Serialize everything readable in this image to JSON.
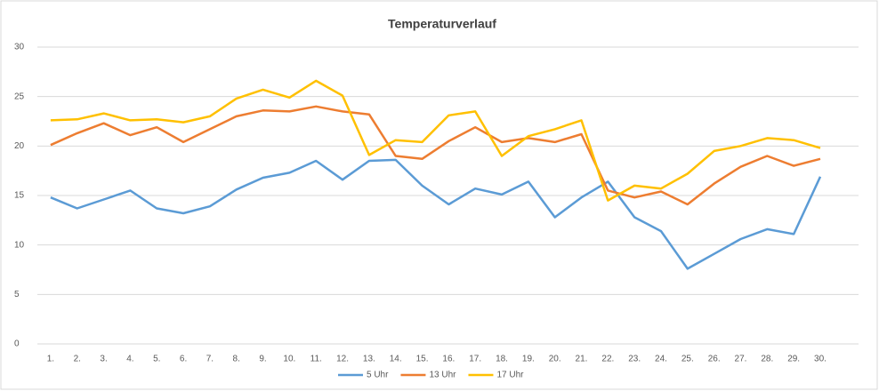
{
  "chart_data": {
    "type": "line",
    "title": "Temperaturverlauf",
    "categories": [
      "1.",
      "2.",
      "3.",
      "4.",
      "5.",
      "6.",
      "7.",
      "8.",
      "9.",
      "10.",
      "11.",
      "12.",
      "13.",
      "14.",
      "15.",
      "16.",
      "17.",
      "18.",
      "19.",
      "20.",
      "21.",
      "22.",
      "23.",
      "24.",
      "25.",
      "26.",
      "27.",
      "28.",
      "29.",
      "30."
    ],
    "series": [
      {
        "name": "5 Uhr",
        "color": "#5b9bd5",
        "values": [
          14.8,
          13.7,
          14.6,
          15.5,
          13.7,
          13.2,
          13.9,
          15.6,
          16.8,
          17.3,
          18.5,
          16.6,
          18.5,
          18.6,
          16.0,
          14.1,
          15.7,
          15.1,
          16.4,
          12.8,
          14.8,
          16.4,
          12.8,
          11.4,
          7.6,
          9.1,
          10.6,
          11.6,
          11.1,
          16.9
        ]
      },
      {
        "name": "13 Uhr",
        "color": "#ed7d31",
        "values": [
          20.1,
          21.3,
          22.3,
          21.1,
          21.9,
          20.4,
          21.7,
          23.0,
          23.6,
          23.5,
          24.0,
          23.5,
          23.2,
          19.0,
          18.7,
          20.5,
          21.9,
          20.4,
          20.8,
          20.4,
          21.2,
          15.5,
          14.8,
          15.4,
          14.1,
          16.2,
          17.9,
          19.0,
          18.0,
          18.7
        ]
      },
      {
        "name": "17 Uhr",
        "color": "#ffc000",
        "values": [
          22.6,
          22.7,
          23.3,
          22.6,
          22.7,
          22.4,
          23.0,
          24.8,
          25.7,
          24.9,
          26.6,
          25.1,
          19.1,
          20.6,
          20.4,
          23.1,
          23.5,
          19.0,
          21.0,
          21.7,
          22.6,
          14.5,
          16.0,
          15.7,
          17.2,
          19.5,
          20.0,
          20.8,
          20.6,
          19.8
        ]
      }
    ],
    "ylim": [
      0,
      30
    ],
    "yticks": [
      0,
      5,
      10,
      15,
      20,
      25,
      30
    ],
    "grid": true,
    "legend": "bottom"
  }
}
